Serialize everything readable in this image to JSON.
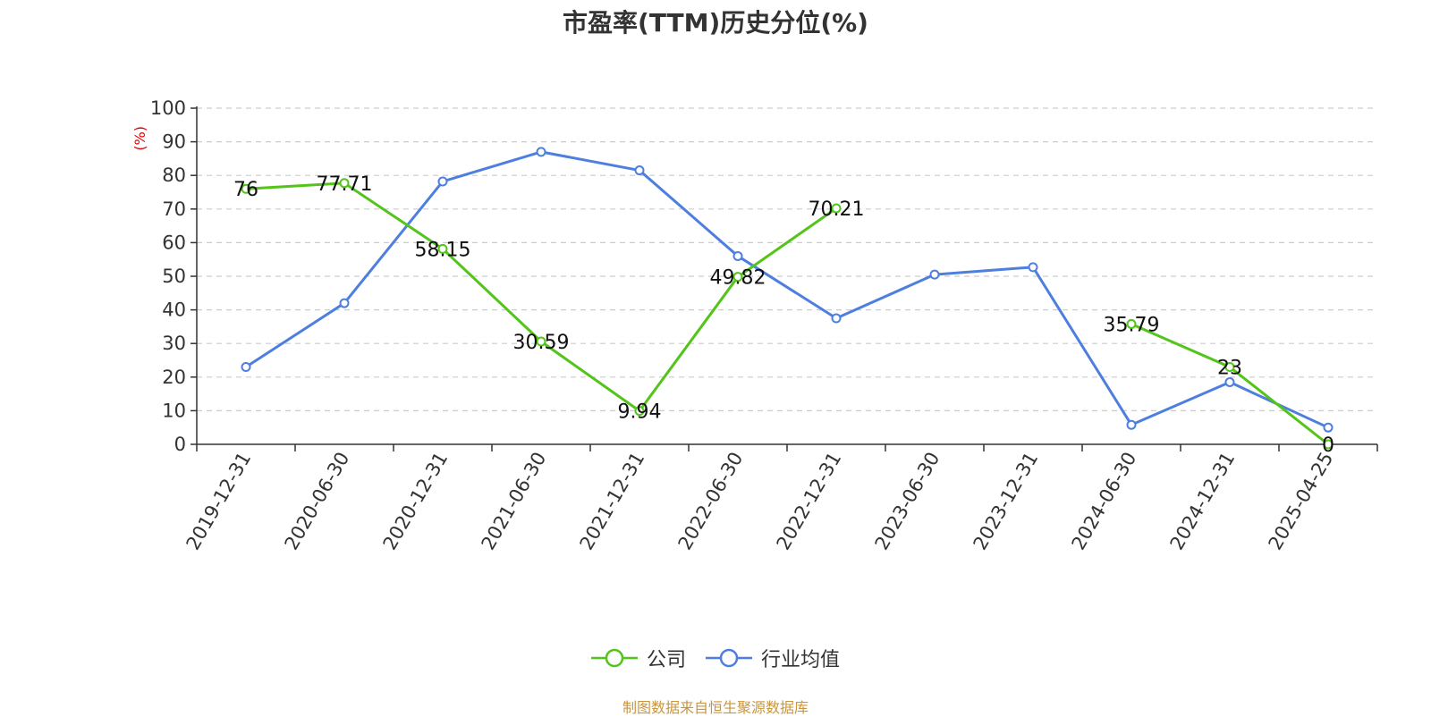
{
  "chart_data": {
    "type": "line",
    "title": "市盈率(TTM)历史分位(%)",
    "ylabel": "(%)",
    "xlabel": "",
    "ylim": [
      0,
      100
    ],
    "yticks": [
      0,
      10,
      20,
      30,
      40,
      50,
      60,
      70,
      80,
      90,
      100
    ],
    "categories": [
      "2019-12-31",
      "2020-06-30",
      "2020-12-31",
      "2021-06-30",
      "2021-12-31",
      "2022-06-30",
      "2022-12-31",
      "2023-06-30",
      "2023-12-31",
      "2024-06-30",
      "2024-12-31",
      "2025-04-25"
    ],
    "grid": true,
    "legend_position": "bottom",
    "series": [
      {
        "name": "公司",
        "color": "#52c41a",
        "show_labels": true,
        "values": [
          76,
          77.71,
          58.15,
          30.59,
          9.94,
          49.82,
          70.21,
          null,
          null,
          35.79,
          23,
          0
        ]
      },
      {
        "name": "行业均值",
        "color": "#4e7fdf",
        "show_labels": false,
        "values": [
          23,
          42,
          78.2,
          87,
          81.5,
          56,
          37.5,
          50.5,
          52.7,
          5.8,
          18.5,
          5
        ]
      }
    ]
  },
  "footer": "制图数据来自恒生聚源数据库"
}
